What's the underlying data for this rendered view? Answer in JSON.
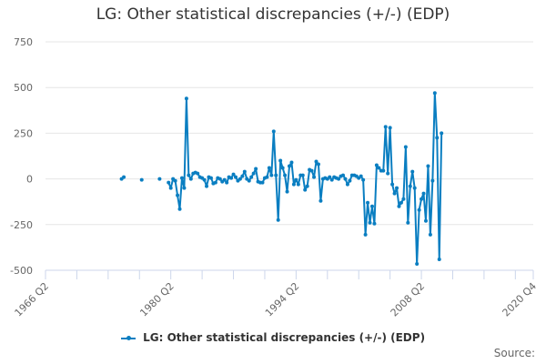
{
  "title": "LG: Other statistical discrepancies (+/-) (EDP)",
  "legend": {
    "label": "LG: Other statistical discrepancies (+/-) (EDP)",
    "color": "#0a7ec1"
  },
  "source_label": "Source:",
  "chart_data": {
    "type": "line",
    "title": "LG: Other statistical discrepancies (+/-) (EDP)",
    "xlabel": "",
    "ylabel": "",
    "ylim": [
      -500,
      750
    ],
    "yticks": [
      750,
      500,
      250,
      0,
      -250,
      -500
    ],
    "xticks": [
      "1966 Q2",
      "1980 Q2",
      "1994 Q2",
      "2008 Q2",
      "2020 Q4"
    ],
    "grid": true,
    "legend_position": "bottom",
    "series": [
      {
        "name": "LG: Other statistical discrepancies (+/-) (EDP)",
        "color": "#0a7ec1",
        "points": [
          {
            "x": "1974 Q4",
            "y": 0
          },
          {
            "x": "1975 Q1",
            "y": 10
          },
          {
            "x": "1977 Q1",
            "y": -5
          },
          {
            "x": "1979 Q1",
            "y": 0
          },
          {
            "x": "1980 Q1",
            "y": -20
          },
          {
            "x": "1980 Q2",
            "y": -50
          },
          {
            "x": "1980 Q3",
            "y": 0
          },
          {
            "x": "1980 Q4",
            "y": -10
          },
          {
            "x": "1981 Q1",
            "y": -90
          },
          {
            "x": "1981 Q2",
            "y": -165
          },
          {
            "x": "1981 Q3",
            "y": 5
          },
          {
            "x": "1981 Q4",
            "y": -50
          },
          {
            "x": "1982 Q1",
            "y": 440
          },
          {
            "x": "1982 Q2",
            "y": 20
          },
          {
            "x": "1982 Q3",
            "y": 0
          },
          {
            "x": "1982 Q4",
            "y": 30
          },
          {
            "x": "1983 Q1",
            "y": 35
          },
          {
            "x": "1983 Q2",
            "y": 30
          },
          {
            "x": "1983 Q3",
            "y": 10
          },
          {
            "x": "1983 Q4",
            "y": 5
          },
          {
            "x": "1984 Q1",
            "y": -5
          },
          {
            "x": "1984 Q2",
            "y": -40
          },
          {
            "x": "1984 Q3",
            "y": 10
          },
          {
            "x": "1984 Q4",
            "y": 5
          },
          {
            "x": "1985 Q1",
            "y": -25
          },
          {
            "x": "1985 Q2",
            "y": -20
          },
          {
            "x": "1985 Q3",
            "y": 5
          },
          {
            "x": "1985 Q4",
            "y": 0
          },
          {
            "x": "1986 Q1",
            "y": -15
          },
          {
            "x": "1986 Q2",
            "y": -5
          },
          {
            "x": "1986 Q3",
            "y": -20
          },
          {
            "x": "1986 Q4",
            "y": 10
          },
          {
            "x": "1987 Q1",
            "y": 5
          },
          {
            "x": "1987 Q2",
            "y": 25
          },
          {
            "x": "1987 Q3",
            "y": 10
          },
          {
            "x": "1987 Q4",
            "y": -10
          },
          {
            "x": "1988 Q1",
            "y": 0
          },
          {
            "x": "1988 Q2",
            "y": 15
          },
          {
            "x": "1988 Q3",
            "y": 40
          },
          {
            "x": "1988 Q4",
            "y": 0
          },
          {
            "x": "1989 Q1",
            "y": -10
          },
          {
            "x": "1989 Q2",
            "y": 10
          },
          {
            "x": "1989 Q3",
            "y": 30
          },
          {
            "x": "1989 Q4",
            "y": 55
          },
          {
            "x": "1990 Q1",
            "y": -15
          },
          {
            "x": "1990 Q2",
            "y": -20
          },
          {
            "x": "1990 Q3",
            "y": -20
          },
          {
            "x": "1990 Q4",
            "y": 5
          },
          {
            "x": "1991 Q1",
            "y": 10
          },
          {
            "x": "1991 Q2",
            "y": 60
          },
          {
            "x": "1991 Q3",
            "y": 20
          },
          {
            "x": "1991 Q4",
            "y": 260
          },
          {
            "x": "1992 Q1",
            "y": 20
          },
          {
            "x": "1992 Q2",
            "y": -225
          },
          {
            "x": "1992 Q3",
            "y": 100
          },
          {
            "x": "1992 Q4",
            "y": 60
          },
          {
            "x": "1993 Q1",
            "y": 20
          },
          {
            "x": "1993 Q2",
            "y": -70
          },
          {
            "x": "1993 Q3",
            "y": 70
          },
          {
            "x": "1993 Q4",
            "y": 90
          },
          {
            "x": "1994 Q1",
            "y": -30
          },
          {
            "x": "1994 Q2",
            "y": -5
          },
          {
            "x": "1994 Q3",
            "y": -30
          },
          {
            "x": "1994 Q4",
            "y": 20
          },
          {
            "x": "1995 Q1",
            "y": 20
          },
          {
            "x": "1995 Q2",
            "y": -60
          },
          {
            "x": "1995 Q3",
            "y": -40
          },
          {
            "x": "1995 Q4",
            "y": 50
          },
          {
            "x": "1996 Q1",
            "y": 45
          },
          {
            "x": "1996 Q2",
            "y": 10
          },
          {
            "x": "1996 Q3",
            "y": 95
          },
          {
            "x": "1996 Q4",
            "y": 80
          },
          {
            "x": "1997 Q1",
            "y": -120
          },
          {
            "x": "1997 Q2",
            "y": 0
          },
          {
            "x": "1997 Q3",
            "y": 5
          },
          {
            "x": "1997 Q4",
            "y": 0
          },
          {
            "x": "1998 Q1",
            "y": 10
          },
          {
            "x": "1998 Q2",
            "y": -5
          },
          {
            "x": "1998 Q3",
            "y": 10
          },
          {
            "x": "1998 Q4",
            "y": 5
          },
          {
            "x": "1999 Q1",
            "y": 0
          },
          {
            "x": "1999 Q2",
            "y": 15
          },
          {
            "x": "1999 Q3",
            "y": 20
          },
          {
            "x": "1999 Q4",
            "y": 0
          },
          {
            "x": "2000 Q1",
            "y": -30
          },
          {
            "x": "2000 Q2",
            "y": -10
          },
          {
            "x": "2000 Q3",
            "y": 20
          },
          {
            "x": "2000 Q4",
            "y": 20
          },
          {
            "x": "2001 Q1",
            "y": 15
          },
          {
            "x": "2001 Q2",
            "y": 5
          },
          {
            "x": "2001 Q3",
            "y": 15
          },
          {
            "x": "2001 Q4",
            "y": -5
          },
          {
            "x": "2002 Q1",
            "y": -305
          },
          {
            "x": "2002 Q2",
            "y": -130
          },
          {
            "x": "2002 Q3",
            "y": -240
          },
          {
            "x": "2002 Q4",
            "y": -150
          },
          {
            "x": "2003 Q1",
            "y": -245
          },
          {
            "x": "2003 Q2",
            "y": 75
          },
          {
            "x": "2003 Q3",
            "y": 60
          },
          {
            "x": "2003 Q4",
            "y": 45
          },
          {
            "x": "2004 Q1",
            "y": 45
          },
          {
            "x": "2004 Q2",
            "y": 285
          },
          {
            "x": "2004 Q3",
            "y": 30
          },
          {
            "x": "2004 Q4",
            "y": 280
          },
          {
            "x": "2005 Q1",
            "y": -30
          },
          {
            "x": "2005 Q2",
            "y": -80
          },
          {
            "x": "2005 Q3",
            "y": -50
          },
          {
            "x": "2005 Q4",
            "y": -150
          },
          {
            "x": "2006 Q1",
            "y": -130
          },
          {
            "x": "2006 Q2",
            "y": -110
          },
          {
            "x": "2006 Q3",
            "y": 175
          },
          {
            "x": "2006 Q4",
            "y": -240
          },
          {
            "x": "2007 Q1",
            "y": -40
          },
          {
            "x": "2007 Q2",
            "y": 40
          },
          {
            "x": "2007 Q3",
            "y": -50
          },
          {
            "x": "2007 Q4",
            "y": -465
          },
          {
            "x": "2008 Q1",
            "y": -170
          },
          {
            "x": "2008 Q2",
            "y": -110
          },
          {
            "x": "2008 Q3",
            "y": -80
          },
          {
            "x": "2008 Q4",
            "y": -230
          },
          {
            "x": "2009 Q1",
            "y": 70
          },
          {
            "x": "2009 Q2",
            "y": -305
          },
          {
            "x": "2009 Q3",
            "y": -10
          },
          {
            "x": "2009 Q4",
            "y": 470
          },
          {
            "x": "2010 Q1",
            "y": 225
          },
          {
            "x": "2010 Q2",
            "y": -440
          },
          {
            "x": "2010 Q3",
            "y": 250
          }
        ]
      }
    ]
  }
}
